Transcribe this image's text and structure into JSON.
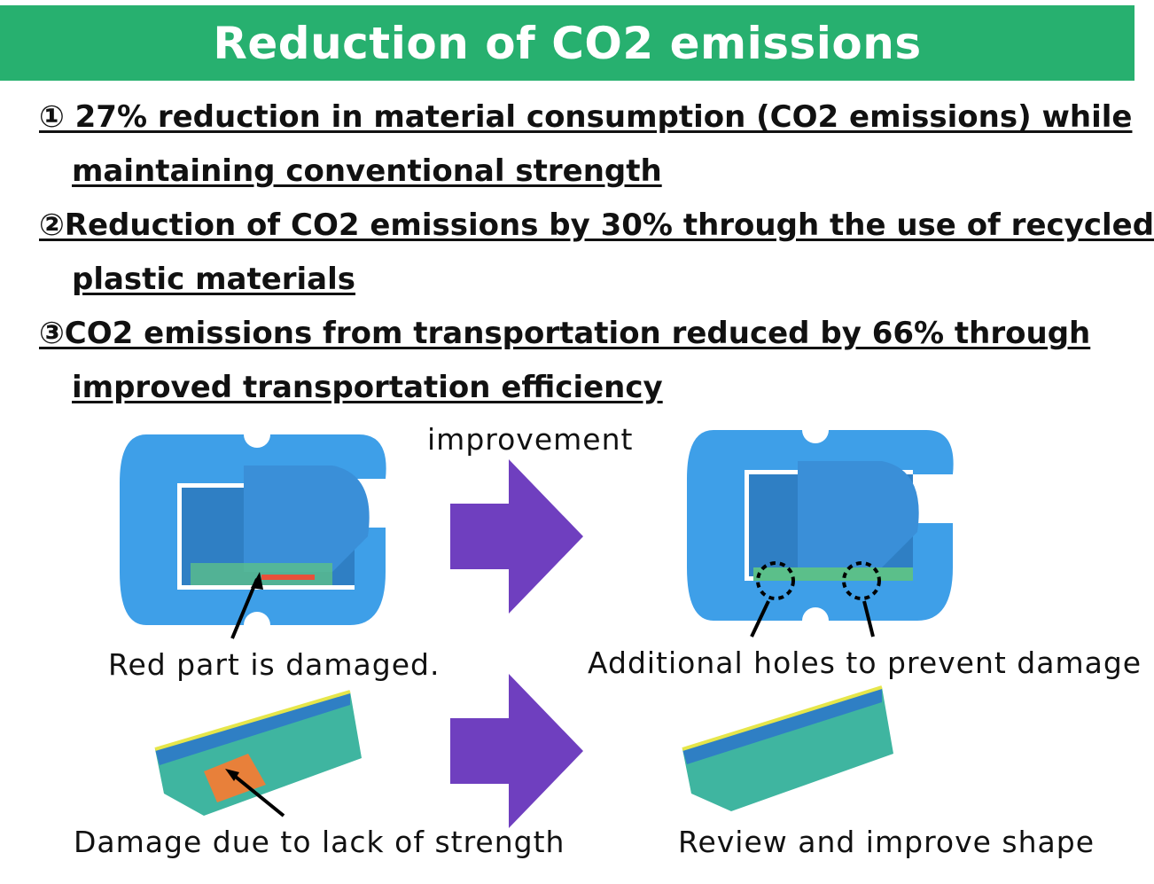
{
  "header": {
    "title": "Reduction of CO2 emissions"
  },
  "points": [
    {
      "line1": "① 27% reduction in material consumption (CO2 emissions) while",
      "line2": "maintaining conventional strength"
    },
    {
      "line1": "②Reduction of CO2 emissions by 30% through the use of recycled",
      "line2": "plastic materials"
    },
    {
      "line1": "③CO2 emissions from transportation reduced by 66% through",
      "line2": "improved transportation efficiency"
    }
  ],
  "figures": {
    "arrow_label": "improvement",
    "top_before_caption": "Red part is damaged.",
    "top_after_caption": "Additional holes to prevent damage",
    "bottom_before_caption": "Damage due to lack of strength",
    "bottom_after_caption": "Review and improve shape"
  },
  "colors": {
    "header": "#27b06f",
    "arrow": "#6f3fbf",
    "part": "#3e9fe8"
  }
}
